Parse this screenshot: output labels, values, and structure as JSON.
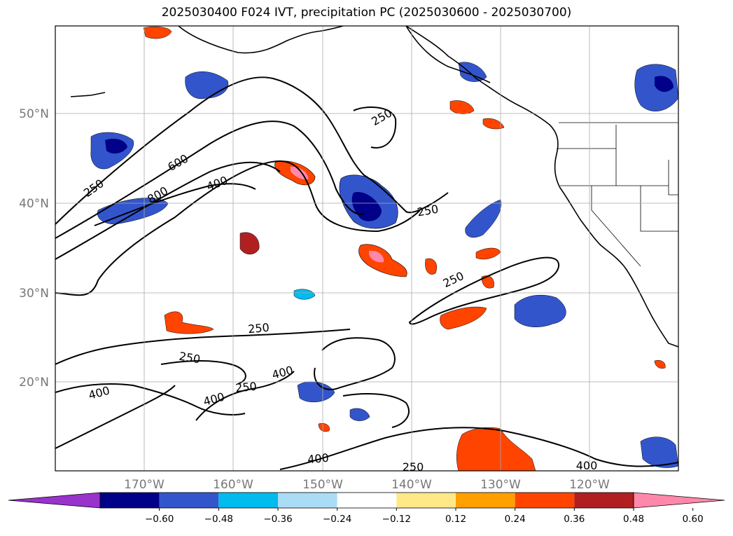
{
  "title": "2025030400 F024 IVT, precipitation PC (2025030600 - 2025030700)",
  "chart_data": {
    "type": "heatmap",
    "title": "2025030400 F024 IVT, precipitation PC (2025030600 - 2025030700)",
    "lat_ticks": [
      "50°N",
      "40°N",
      "30°N",
      "20°N"
    ],
    "lon_ticks": [
      "170°W",
      "160°W",
      "150°W",
      "140°W",
      "130°W",
      "120°W"
    ],
    "colorbar": {
      "ticks": [
        "−0.60",
        "−0.48",
        "−0.36",
        "−0.24",
        "−0.12",
        "0.12",
        "0.24",
        "0.36",
        "0.48",
        "0.60"
      ],
      "colors": [
        "#9933cc",
        "#000088",
        "#3355cc",
        "#00bbee",
        "#aaddf5",
        "#ffffff",
        "#ffe888",
        "#ffa000",
        "#ff4400",
        "#b02020",
        "#ff88aa"
      ]
    },
    "ivt_contour_labels": [
      "250",
      "250",
      "250",
      "250",
      "250",
      "250",
      "250",
      "250",
      "400",
      "400",
      "400",
      "400",
      "400",
      "400",
      "600",
      "800"
    ]
  }
}
